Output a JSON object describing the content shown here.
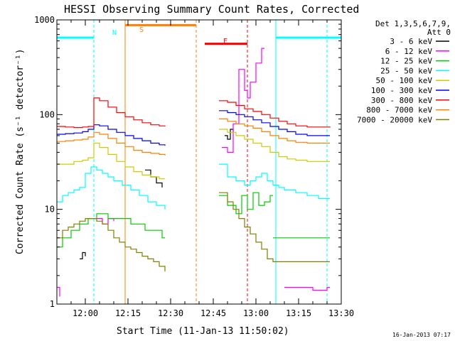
{
  "chart_data": {
    "type": "line",
    "title": "HESSI Observing Summary Count Rates, Corrected",
    "xlabel": "Start Time (11-Jan-13 11:50:02)",
    "ylabel": "Corrected Count Rate (s⁻¹ detector⁻¹)",
    "yscale": "log",
    "ylim": [
      1,
      1000
    ],
    "xlim_minutes": [
      0,
      100
    ],
    "x_ticks": [
      {
        "min": 10,
        "label": "12:00"
      },
      {
        "min": 25,
        "label": "12:15"
      },
      {
        "min": 40,
        "label": "12:30"
      },
      {
        "min": 55,
        "label": "12:45"
      },
      {
        "min": 70,
        "label": "13:00"
      },
      {
        "min": 85,
        "label": "13:15"
      },
      {
        "min": 100,
        "label": "13:30"
      }
    ],
    "y_ticks": [
      {
        "val": 1,
        "label": "1"
      },
      {
        "val": 10,
        "label": "10"
      },
      {
        "val": 100,
        "label": "100"
      },
      {
        "val": 1000,
        "label": "1000"
      }
    ],
    "legend": {
      "header": [
        "Det 1,3,5,6,7,9,",
        "Att 0"
      ],
      "placement": "right"
    },
    "series": [
      {
        "name": "3 - 6 keV",
        "color": "#000000",
        "segments": [
          [
            [
              31,
              26
            ],
            [
              33,
              22
            ],
            [
              35,
              19
            ],
            [
              37,
              17
            ]
          ],
          [
            [
              59,
              60
            ],
            [
              60,
              55
            ],
            [
              61,
              70
            ],
            [
              62,
              65
            ]
          ],
          [
            [
              8,
              3
            ],
            [
              9,
              3.5
            ],
            [
              10,
              3.2
            ]
          ]
        ]
      },
      {
        "name": "6 - 12 keV",
        "color": "#ff00ff",
        "segments": [
          [
            [
              0,
              1.5
            ],
            [
              1,
              1.2
            ]
          ],
          [
            [
              14,
              8
            ],
            [
              16,
              7
            ],
            [
              18,
              8
            ],
            [
              20,
              7.5
            ]
          ],
          [
            [
              58,
              45
            ],
            [
              60,
              40
            ],
            [
              62,
              80
            ],
            [
              64,
              300
            ],
            [
              66,
              180
            ],
            [
              67,
              150
            ],
            [
              68,
              220
            ],
            [
              70,
              350
            ],
            [
              72,
              500
            ],
            [
              73,
              500
            ]
          ],
          [
            [
              80,
              1.5
            ],
            [
              85,
              1.5
            ],
            [
              90,
              1.4
            ],
            [
              95,
              1.5
            ],
            [
              96,
              1.5
            ]
          ]
        ]
      },
      {
        "name": "12 - 25 keV",
        "color": "#00cc00",
        "segments": [
          [
            [
              0,
              4
            ],
            [
              2,
              5
            ],
            [
              5,
              6
            ],
            [
              8,
              7
            ],
            [
              11,
              8
            ],
            [
              14,
              9
            ],
            [
              18,
              8
            ],
            [
              22,
              8
            ],
            [
              26,
              7
            ],
            [
              31,
              6
            ],
            [
              37,
              5
            ],
            [
              38,
              5
            ]
          ],
          [
            [
              57,
              14
            ],
            [
              60,
              11
            ],
            [
              63,
              9
            ],
            [
              65,
              14
            ],
            [
              67,
              10
            ],
            [
              69,
              15
            ],
            [
              71,
              11
            ],
            [
              73,
              12
            ],
            [
              75,
              14
            ],
            [
              76,
              14
            ]
          ],
          [
            [
              76,
              5
            ],
            [
              80,
              5
            ],
            [
              85,
              5
            ],
            [
              90,
              5
            ],
            [
              94,
              5
            ],
            [
              96,
              5
            ]
          ]
        ]
      },
      {
        "name": "25 - 50 keV",
        "color": "#00ffff",
        "segments": [
          [
            [
              0,
              12
            ],
            [
              2,
              14
            ],
            [
              4,
              15
            ],
            [
              6,
              16
            ],
            [
              8,
              17
            ],
            [
              10,
              24
            ],
            [
              12,
              28
            ],
            [
              14,
              26
            ],
            [
              16,
              24
            ],
            [
              18,
              22
            ],
            [
              20,
              20
            ],
            [
              23,
              18
            ],
            [
              26,
              16
            ],
            [
              29,
              14
            ],
            [
              32,
              12
            ],
            [
              35,
              11
            ],
            [
              38,
              10
            ]
          ],
          [
            [
              57,
              30
            ],
            [
              60,
              22
            ],
            [
              63,
              20
            ],
            [
              66,
              18
            ],
            [
              68,
              20
            ],
            [
              70,
              22
            ],
            [
              72,
              24
            ],
            [
              74,
              20
            ],
            [
              76,
              18
            ],
            [
              78,
              17
            ],
            [
              80,
              16
            ],
            [
              84,
              15
            ],
            [
              88,
              14
            ],
            [
              92,
              13
            ],
            [
              96,
              13
            ]
          ]
        ]
      },
      {
        "name": "50 - 100 keV",
        "color": "#cccc00",
        "segments": [
          [
            [
              0,
              30
            ],
            [
              3,
              30
            ],
            [
              6,
              32
            ],
            [
              9,
              33
            ],
            [
              11,
              35
            ],
            [
              13,
              50
            ],
            [
              15,
              45
            ],
            [
              18,
              38
            ],
            [
              21,
              32
            ],
            [
              24,
              28
            ],
            [
              27,
              25
            ],
            [
              30,
              23
            ],
            [
              33,
              22
            ],
            [
              36,
              21
            ],
            [
              38,
              21
            ]
          ],
          [
            [
              57,
              70
            ],
            [
              60,
              65
            ],
            [
              63,
              60
            ],
            [
              66,
              55
            ],
            [
              69,
              50
            ],
            [
              72,
              46
            ],
            [
              75,
              40
            ],
            [
              78,
              36
            ],
            [
              81,
              34
            ],
            [
              84,
              33
            ],
            [
              88,
              32
            ],
            [
              92,
              32
            ],
            [
              96,
              32
            ]
          ]
        ]
      },
      {
        "name": "100 - 300 keV",
        "color": "#0000ff",
        "segments": [
          [
            [
              0,
              62
            ],
            [
              3,
              63
            ],
            [
              6,
              64
            ],
            [
              9,
              66
            ],
            [
              11,
              70
            ],
            [
              13,
              78
            ],
            [
              15,
              76
            ],
            [
              18,
              70
            ],
            [
              21,
              65
            ],
            [
              24,
              60
            ],
            [
              27,
              56
            ],
            [
              30,
              53
            ],
            [
              33,
              50
            ],
            [
              36,
              48
            ],
            [
              38,
              47
            ]
          ],
          [
            [
              57,
              110
            ],
            [
              60,
              105
            ],
            [
              63,
              100
            ],
            [
              66,
              95
            ],
            [
              69,
              88
            ],
            [
              72,
              82
            ],
            [
              75,
              75
            ],
            [
              78,
              70
            ],
            [
              81,
              66
            ],
            [
              84,
              62
            ],
            [
              88,
              60
            ],
            [
              92,
              60
            ],
            [
              96,
              60
            ]
          ]
        ]
      },
      {
        "name": "300 - 800 keV",
        "color": "#ff0000",
        "segments": [
          [
            [
              0,
              75
            ],
            [
              3,
              74
            ],
            [
              6,
              73
            ],
            [
              9,
              74
            ],
            [
              11,
              75
            ],
            [
              13,
              150
            ],
            [
              15,
              140
            ],
            [
              18,
              120
            ],
            [
              21,
              105
            ],
            [
              24,
              95
            ],
            [
              27,
              88
            ],
            [
              30,
              82
            ],
            [
              33,
              78
            ],
            [
              36,
              76
            ],
            [
              38,
              75
            ]
          ],
          [
            [
              57,
              140
            ],
            [
              60,
              135
            ],
            [
              63,
              125
            ],
            [
              66,
              115
            ],
            [
              69,
              108
            ],
            [
              72,
              100
            ],
            [
              75,
              92
            ],
            [
              78,
              85
            ],
            [
              81,
              80
            ],
            [
              84,
              76
            ],
            [
              88,
              74
            ],
            [
              92,
              74
            ],
            [
              96,
              75
            ]
          ]
        ]
      },
      {
        "name": "800 - 7000 keV",
        "color": "#ff8000",
        "segments": [
          [
            [
              0,
              52
            ],
            [
              3,
              53
            ],
            [
              6,
              54
            ],
            [
              9,
              55
            ],
            [
              11,
              58
            ],
            [
              13,
              65
            ],
            [
              15,
              62
            ],
            [
              18,
              56
            ],
            [
              21,
              50
            ],
            [
              24,
              46
            ],
            [
              27,
              42
            ],
            [
              30,
              40
            ],
            [
              33,
              39
            ],
            [
              36,
              38
            ],
            [
              38,
              37
            ]
          ],
          [
            [
              57,
              90
            ],
            [
              60,
              85
            ],
            [
              63,
              80
            ],
            [
              66,
              76
            ],
            [
              69,
              72
            ],
            [
              72,
              66
            ],
            [
              75,
              60
            ],
            [
              78,
              56
            ],
            [
              81,
              53
            ],
            [
              84,
              51
            ],
            [
              88,
              50
            ],
            [
              92,
              50
            ],
            [
              96,
              50
            ]
          ]
        ]
      },
      {
        "name": "7000 - 20000 keV",
        "color": "#808000",
        "segments": [
          [
            [
              0,
              5
            ],
            [
              2,
              6
            ],
            [
              4,
              6.5
            ],
            [
              6,
              7
            ],
            [
              8,
              7.5
            ],
            [
              10,
              8
            ],
            [
              12,
              8
            ],
            [
              14,
              7.5
            ],
            [
              16,
              7
            ],
            [
              18,
              6
            ],
            [
              20,
              5
            ],
            [
              22,
              4.5
            ],
            [
              24,
              4
            ],
            [
              26,
              3.8
            ],
            [
              28,
              3.5
            ],
            [
              30,
              3.2
            ],
            [
              32,
              3
            ],
            [
              34,
              2.8
            ],
            [
              36,
              2.5
            ],
            [
              38,
              2.2
            ]
          ],
          [
            [
              57,
              15
            ],
            [
              60,
              12
            ],
            [
              62,
              10
            ],
            [
              64,
              8
            ],
            [
              66,
              6.5
            ],
            [
              68,
              5.5
            ],
            [
              70,
              4.5
            ],
            [
              72,
              3.8
            ],
            [
              74,
              3
            ],
            [
              76,
              2.8
            ],
            [
              80,
              2.8
            ],
            [
              85,
              2.8
            ],
            [
              90,
              2.8
            ],
            [
              96,
              2.8
            ]
          ]
        ]
      }
    ],
    "status_bars": [
      {
        "label": "N",
        "color": "#00ffff",
        "segments": [
          [
            -8,
            13
          ],
          [
            77,
            108
          ]
        ],
        "value": 650
      },
      {
        "label": "S",
        "color": "#ff8000",
        "segments": [
          [
            24,
            49
          ]
        ],
        "value": 880
      },
      {
        "label": "F",
        "color": "#ff0000",
        "segments": [
          [
            52,
            67
          ]
        ],
        "value": 560
      }
    ],
    "vlines": [
      {
        "min": 13,
        "color": "#00ffff",
        "style": "dashed"
      },
      {
        "min": 24,
        "color": "#ff8000",
        "style": "solid"
      },
      {
        "min": 49,
        "color": "#ff8000",
        "style": "dashed"
      },
      {
        "min": 67,
        "color": "#ff0000",
        "style": "dashed"
      },
      {
        "min": 77,
        "color": "#00ffff",
        "style": "solid"
      },
      {
        "min": 95,
        "color": "#00ffff",
        "style": "dashed"
      }
    ],
    "grid": false
  },
  "timestamp": "16-Jan-2013 07:17"
}
